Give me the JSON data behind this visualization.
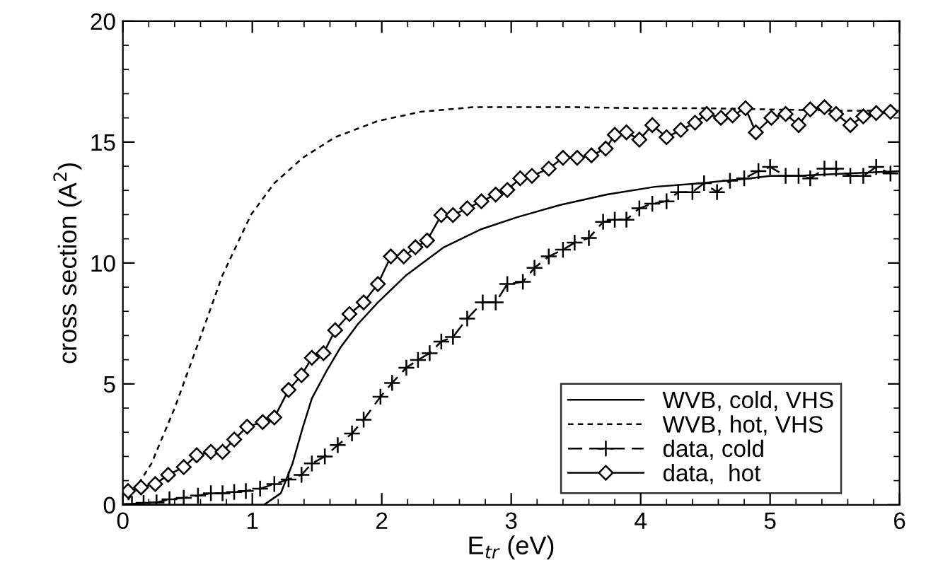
{
  "chart_data": {
    "type": "line",
    "xlabel": "E$_{tr}$ (eV)",
    "ylabel": "cross section (A$^{2}$)",
    "xlim": [
      0,
      6
    ],
    "xticks": [
      0,
      1,
      2,
      3,
      4,
      5,
      6
    ],
    "ylim": [
      0,
      20
    ],
    "yticks": [
      0,
      5,
      10,
      15,
      20
    ],
    "grid": false,
    "legend": "bottom right",
    "series": [
      {
        "name": "WVB, cold, VHS",
        "color": "#000000",
        "line_style": "solid",
        "marker": "none",
        "x": [
          0,
          1.09,
          1.22,
          1.31,
          1.39,
          1.46,
          1.57,
          1.68,
          1.82,
          1.97,
          2.19,
          2.48,
          2.77,
          3.05,
          3.38,
          3.74,
          4.11,
          4.47,
          4.84,
          5.0,
          5.2,
          5.6,
          6.0
        ],
        "values": [
          0,
          0,
          0.48,
          1.7,
          3.2,
          4.4,
          5.5,
          6.5,
          7.5,
          8.37,
          9.5,
          10.65,
          11.4,
          11.9,
          12.4,
          12.83,
          13.15,
          13.3,
          13.5,
          13.6,
          13.6,
          13.7,
          13.8
        ]
      },
      {
        "name": "WVB, hot, VHS",
        "color": "#000000",
        "line_style": "dotted",
        "marker": "none",
        "x": [
          0.04,
          0.22,
          0.4,
          0.58,
          0.77,
          0.99,
          1.17,
          1.39,
          1.64,
          1.97,
          2.3,
          2.7,
          3.1,
          3.5,
          4.0,
          4.5,
          5.0,
          5.5,
          6.0
        ],
        "values": [
          0.2,
          1.7,
          4.0,
          6.65,
          9.5,
          12.0,
          13.3,
          14.35,
          15.2,
          15.87,
          16.25,
          16.44,
          16.44,
          16.44,
          16.4,
          16.4,
          16.35,
          16.3,
          16.3
        ]
      },
      {
        "name": "data, cold",
        "color": "#000000",
        "line_style": "dashed",
        "marker": "cross",
        "x": [
          0.07,
          0.16,
          0.26,
          0.36,
          0.47,
          0.58,
          0.68,
          0.77,
          0.86,
          0.95,
          1.06,
          1.17,
          1.28,
          1.38,
          1.46,
          1.56,
          1.66,
          1.77,
          1.86,
          1.99,
          2.08,
          2.19,
          2.28,
          2.37,
          2.46,
          2.55,
          2.66,
          2.78,
          2.88,
          2.97,
          3.09,
          3.18,
          3.29,
          3.4,
          3.49,
          3.6,
          3.71,
          3.8,
          3.89,
          3.99,
          4.09,
          4.2,
          4.29,
          4.4,
          4.49,
          4.59,
          4.69,
          4.8,
          4.91,
          5.0,
          5.12,
          5.22,
          5.31,
          5.42,
          5.51,
          5.62,
          5.72,
          5.82,
          5.93
        ],
        "values": [
          0.04,
          0.08,
          0.1,
          0.23,
          0.29,
          0.38,
          0.48,
          0.48,
          0.53,
          0.57,
          0.67,
          0.86,
          1.05,
          1.24,
          1.71,
          2.0,
          2.47,
          2.95,
          3.52,
          4.47,
          5.04,
          5.67,
          5.99,
          6.27,
          6.75,
          6.94,
          7.7,
          8.37,
          8.37,
          9.13,
          9.22,
          9.8,
          10.27,
          10.55,
          10.84,
          11.03,
          11.7,
          11.79,
          11.79,
          12.26,
          12.45,
          12.55,
          12.93,
          12.93,
          13.3,
          12.93,
          13.4,
          13.5,
          13.8,
          13.97,
          13.6,
          13.6,
          13.5,
          13.9,
          13.9,
          13.6,
          13.6,
          13.97,
          13.7
        ]
      },
      {
        "name": "data,  hot",
        "color": "#000000",
        "line_style": "solid",
        "marker": "diamond",
        "x": [
          0.04,
          0.14,
          0.25,
          0.35,
          0.47,
          0.57,
          0.68,
          0.77,
          0.86,
          0.96,
          1.08,
          1.17,
          1.28,
          1.38,
          1.46,
          1.55,
          1.64,
          1.75,
          1.86,
          1.97,
          2.07,
          2.17,
          2.26,
          2.35,
          2.46,
          2.55,
          2.66,
          2.77,
          2.88,
          2.97,
          3.07,
          3.16,
          3.29,
          3.4,
          3.51,
          3.62,
          3.73,
          3.8,
          3.89,
          3.99,
          4.09,
          4.2,
          4.31,
          4.42,
          4.51,
          4.62,
          4.71,
          4.81,
          4.89,
          5.01,
          5.12,
          5.22,
          5.31,
          5.42,
          5.51,
          5.62,
          5.72,
          5.82,
          5.93
        ],
        "values": [
          0.57,
          0.72,
          0.86,
          1.24,
          1.56,
          2.05,
          2.19,
          2.19,
          2.7,
          3.23,
          3.42,
          3.61,
          4.75,
          5.36,
          6.08,
          6.27,
          7.22,
          7.89,
          8.37,
          9.13,
          10.27,
          10.27,
          10.65,
          10.93,
          11.98,
          11.98,
          12.26,
          12.55,
          12.83,
          13.02,
          13.5,
          13.6,
          13.9,
          14.35,
          14.35,
          14.45,
          14.73,
          15.3,
          15.4,
          15.1,
          15.7,
          15.2,
          15.5,
          15.8,
          16.16,
          16.0,
          16.1,
          16.4,
          15.4,
          16.0,
          16.16,
          15.7,
          16.35,
          16.44,
          16.16,
          15.7,
          16.06,
          16.2,
          16.25
        ]
      }
    ]
  }
}
